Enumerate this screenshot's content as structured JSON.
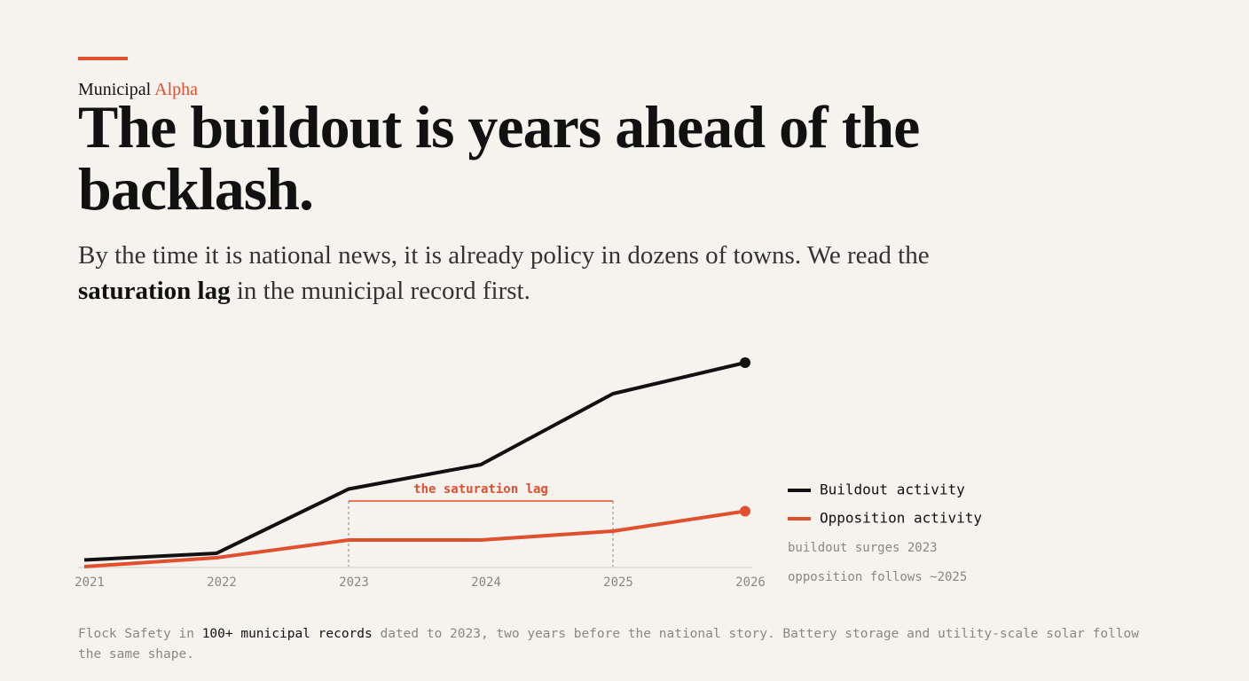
{
  "header": {
    "brand": "Municipal",
    "brand_accent": "Alpha",
    "title": "The buildout is years ahead of the backlash.",
    "dek": [
      "By the time it is national news, it is already policy in dozens of towns. We read the ",
      "saturation lag",
      " in the municipal record first."
    ]
  },
  "chart_data": {
    "type": "line",
    "x": [
      2021,
      2022,
      2023,
      2024,
      2025,
      2026
    ],
    "xlim": [
      2021,
      2026
    ],
    "xticks": [
      2021,
      2022,
      2023,
      2024,
      2025,
      2026
    ],
    "ylim": [
      0,
      100
    ],
    "series": [
      {
        "name": "Buildout activity",
        "color": "#111111",
        "values": [
          3,
          6,
          35,
          46,
          78,
          92
        ]
      },
      {
        "name": "Opposition activity",
        "color": "#e0502f",
        "values": [
          0,
          4,
          12,
          12,
          16,
          25
        ]
      }
    ],
    "annotation": {
      "text": "the saturation lag",
      "x": [
        2023,
        2025
      ],
      "color": "#e0502f"
    },
    "legend": "right",
    "notes": [
      "buildout surges 2023",
      "opposition follows ~2025"
    ]
  },
  "footnote": [
    "Flock Safety in ",
    "100+ municipal records",
    " dated to 2023, two years before the national story. Battery storage and utility-scale solar follow the same shape."
  ]
}
